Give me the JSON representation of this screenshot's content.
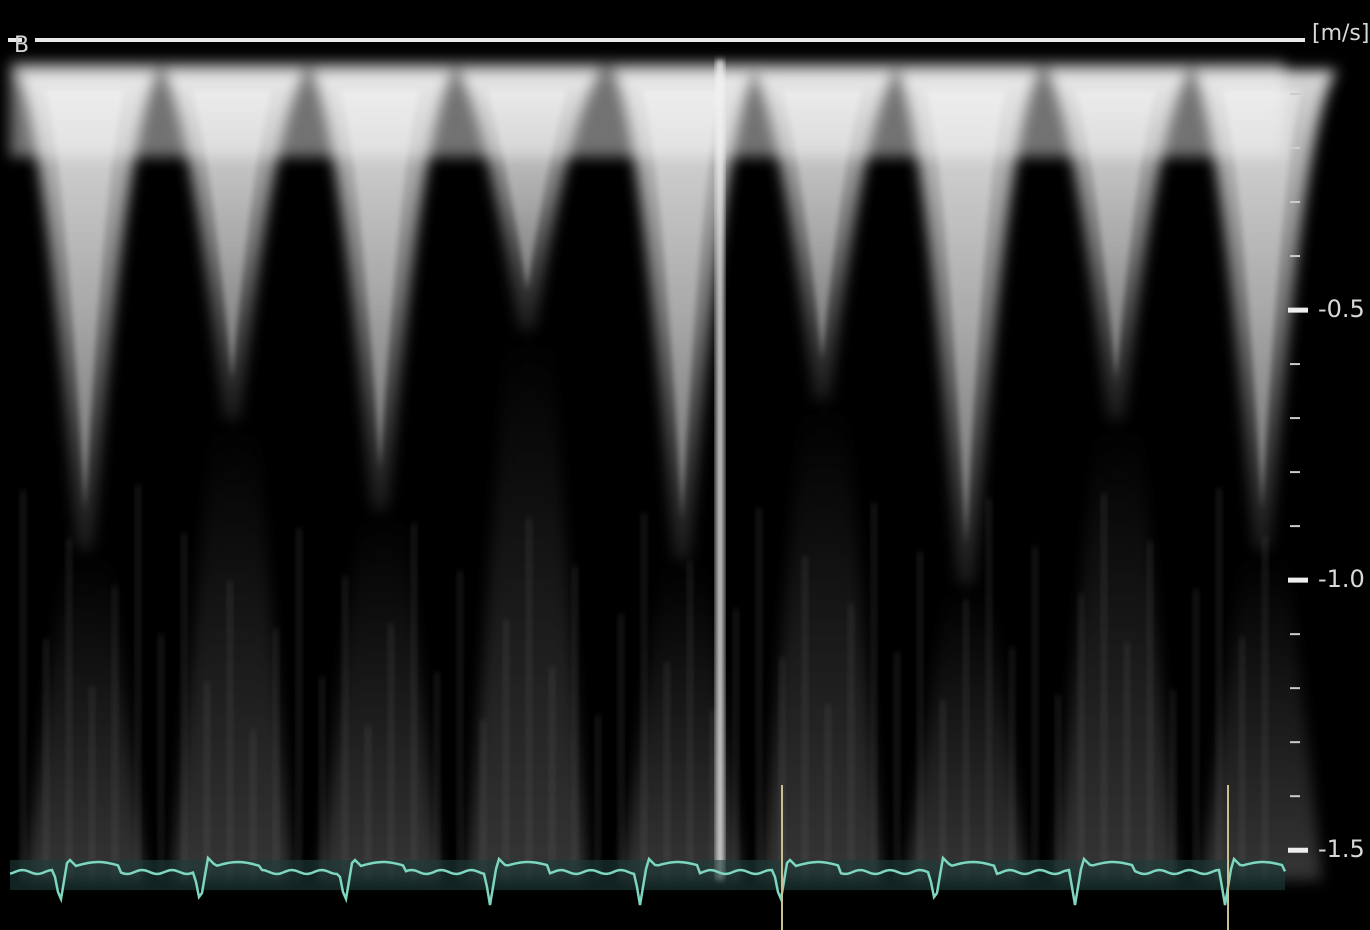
{
  "mode_label": "B",
  "unit": "[m/s]",
  "scale": {
    "range": [
      0,
      -1.57
    ],
    "ticks": [
      {
        "value": -0.5,
        "label": "-0.5"
      },
      {
        "value": -1,
        "label": "-1.0"
      },
      {
        "value": -1.5,
        "label": "-1.5"
      }
    ]
  }
}
